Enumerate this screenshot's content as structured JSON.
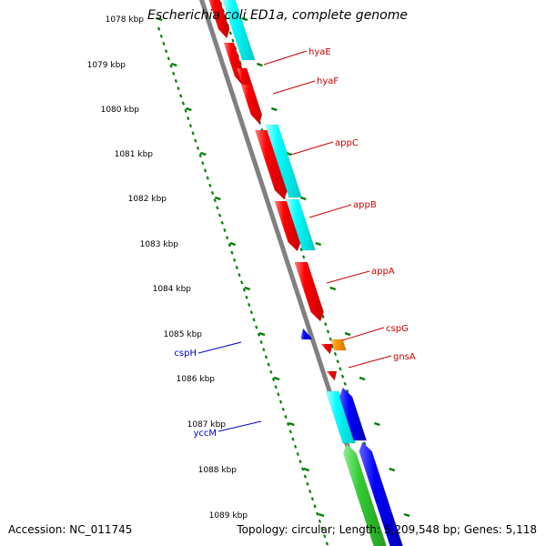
{
  "title": "Escherichia coli ED1a, complete genome",
  "footer": {
    "accession": "Accession: NC_011745",
    "topology": "Topology: circular; Length: 5,209,548 bp; Genes: 5,118"
  },
  "colors": {
    "backbone": "#808080",
    "gene_red": "#ff0000",
    "gene_cyan": "#00ffff",
    "gene_blue": "#0000ff",
    "gene_green": "#33cc33",
    "gene_orange": "#ff9900",
    "tick": "#008000",
    "label_forward": "#cc0000",
    "label_reverse": "#0000cc"
  },
  "kbp_labels": [
    "1078 kbp",
    "1079 kbp",
    "1080 kbp",
    "1081 kbp",
    "1082 kbp",
    "1083 kbp",
    "1084 kbp",
    "1085 kbp",
    "1086 kbp",
    "1087 kbp",
    "1088 kbp",
    "1089 kbp"
  ],
  "gene_labels": [
    {
      "text": "hyaE",
      "strand": "forward"
    },
    {
      "text": "hyaF",
      "strand": "forward"
    },
    {
      "text": "appC",
      "strand": "forward"
    },
    {
      "text": "appB",
      "strand": "forward"
    },
    {
      "text": "appA",
      "strand": "forward"
    },
    {
      "text": "cspG",
      "strand": "forward"
    },
    {
      "text": "gnsA",
      "strand": "forward"
    },
    {
      "text": "cspH",
      "strand": "reverse"
    },
    {
      "text": "yccM",
      "strand": "reverse"
    }
  ]
}
